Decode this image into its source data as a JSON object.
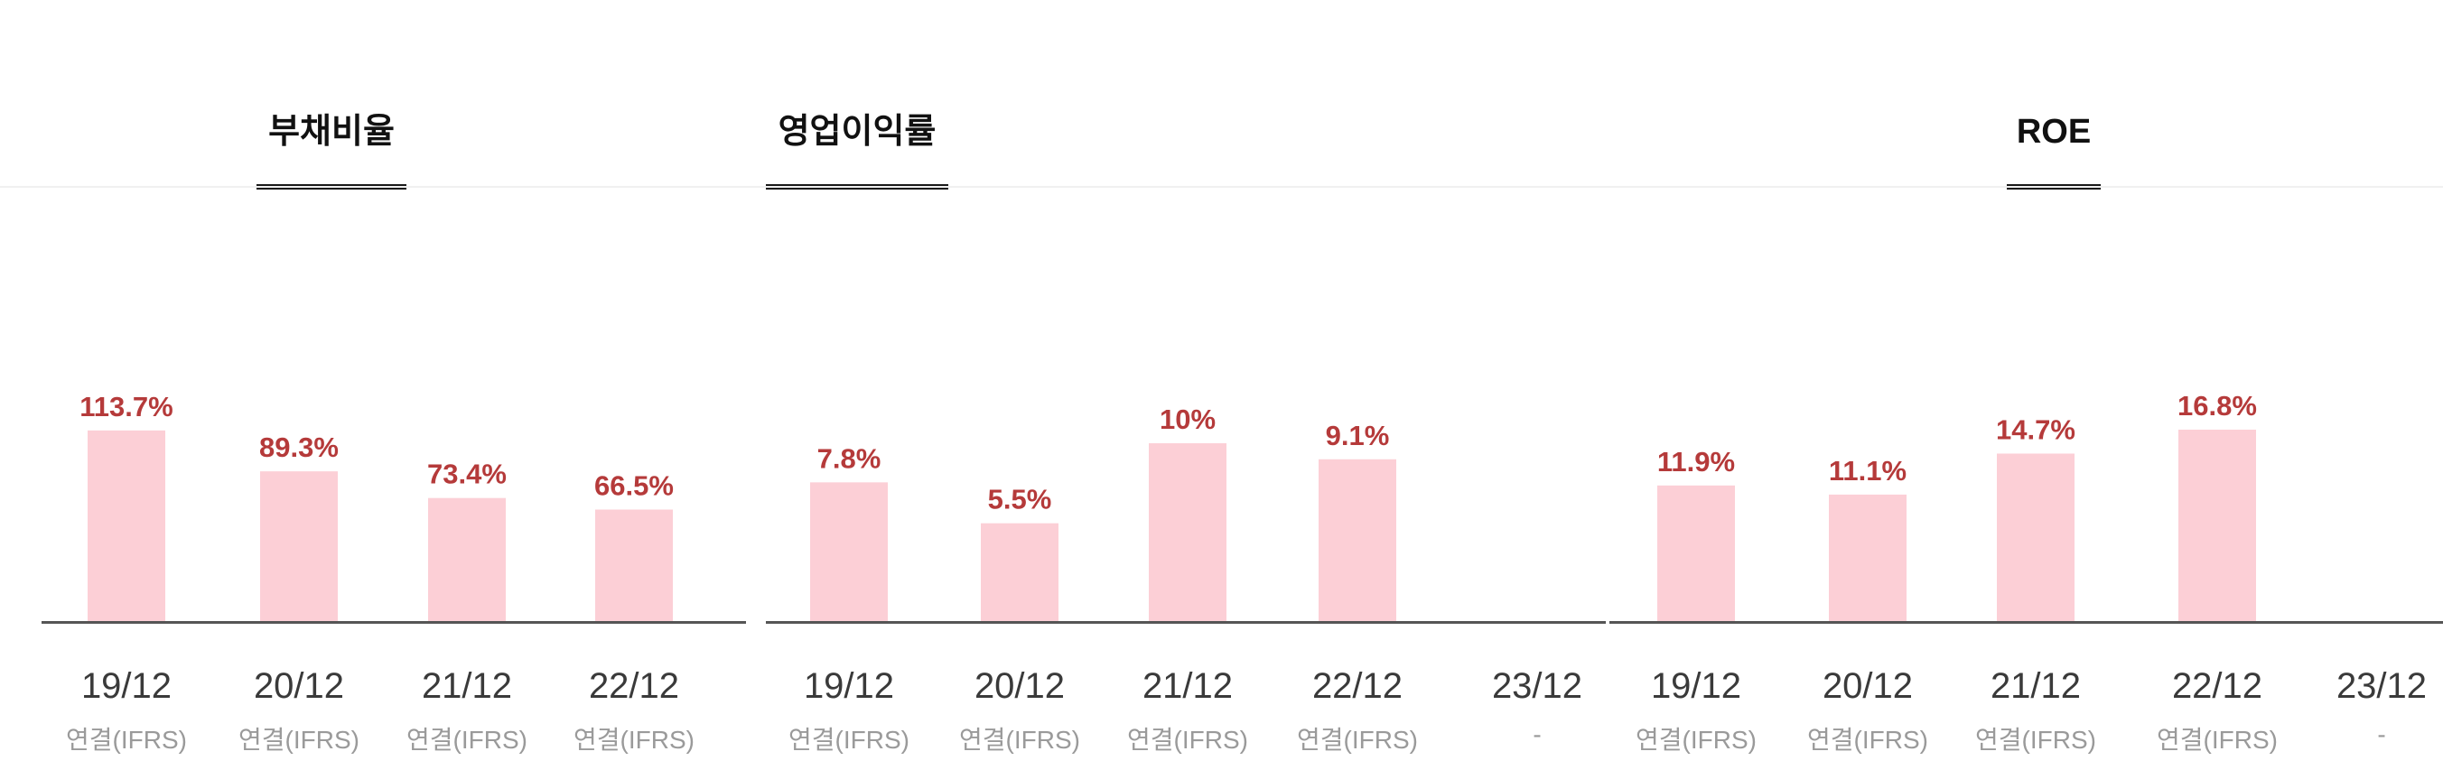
{
  "tabs": [
    {
      "label": "부채비율"
    },
    {
      "label": "영업이익률"
    },
    {
      "label": "ROE"
    }
  ],
  "colors": {
    "bar": "#fccfd6",
    "label": "#b53a3a",
    "axis": "#555555"
  },
  "chart_data": [
    {
      "type": "bar",
      "categories": [
        "19/12",
        "20/12",
        "21/12",
        "22/12"
      ],
      "sub_labels": [
        "연결(IFRS)",
        "연결(IFRS)",
        "연결(IFRS)",
        "연결(IFRS)"
      ],
      "values": [
        113.7,
        89.3,
        73.4,
        66.5
      ],
      "value_labels": [
        "113.7%",
        "89.3%",
        "73.4%",
        "66.5%"
      ],
      "title": "부채비율",
      "ylim": [
        0,
        140
      ]
    },
    {
      "type": "bar",
      "categories": [
        "19/12",
        "20/12",
        "21/12",
        "22/12",
        "23/12"
      ],
      "sub_labels": [
        "연결(IFRS)",
        "연결(IFRS)",
        "연결(IFRS)",
        "연결(IFRS)",
        "-"
      ],
      "values": [
        7.8,
        5.5,
        10,
        9.1,
        null
      ],
      "value_labels": [
        "7.8%",
        "5.5%",
        "10%",
        "9.1%",
        ""
      ],
      "title": "영업이익률",
      "ylim": [
        0,
        13.2
      ]
    },
    {
      "type": "bar",
      "categories": [
        "19/12",
        "20/12",
        "21/12",
        "22/12",
        "23/12"
      ],
      "sub_labels": [
        "연결(IFRS)",
        "연결(IFRS)",
        "연결(IFRS)",
        "연결(IFRS)",
        "-"
      ],
      "values": [
        11.9,
        11.1,
        14.7,
        16.8,
        null
      ],
      "value_labels": [
        "11.9%",
        "11.1%",
        "14.7%",
        "16.8%",
        ""
      ],
      "title": "ROE",
      "ylim": [
        0,
        20.6
      ]
    }
  ]
}
